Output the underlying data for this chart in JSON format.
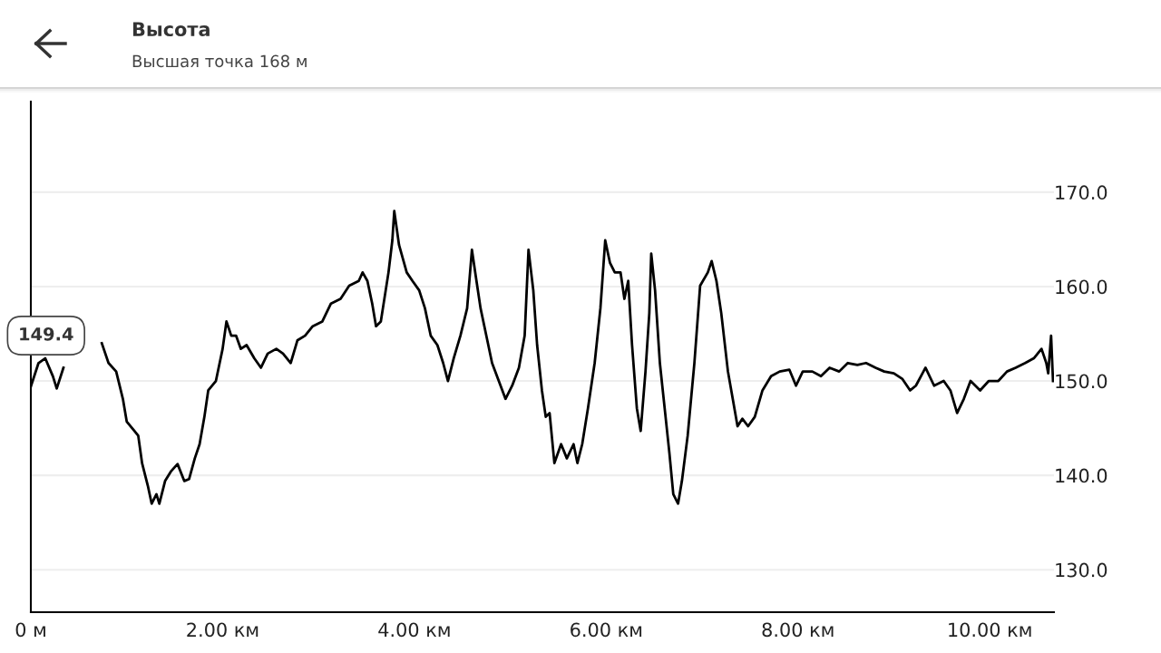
{
  "chart_data": {
    "type": "line",
    "title": "Высота",
    "subtitle": "Высшая точка 168 м",
    "x": [
      0,
      0.08,
      0.15,
      0.23,
      0.27,
      0.34,
      0.42,
      0.48,
      0.58,
      0.67,
      0.74,
      0.81,
      0.89,
      0.96,
      1.0,
      1.08,
      1.12,
      1.16,
      1.22,
      1.26,
      1.31,
      1.34,
      1.4,
      1.46,
      1.53,
      1.6,
      1.65,
      1.71,
      1.76,
      1.81,
      1.85,
      1.93,
      2.0,
      2.04,
      2.09,
      2.14,
      2.19,
      2.25,
      2.33,
      2.4,
      2.47,
      2.56,
      2.63,
      2.71,
      2.78,
      2.86,
      2.94,
      3.04,
      3.13,
      3.23,
      3.32,
      3.42,
      3.46,
      3.51,
      3.56,
      3.6,
      3.65,
      3.73,
      3.77,
      3.79,
      3.84,
      3.92,
      3.98,
      4.05,
      4.11,
      4.17,
      4.24,
      4.3,
      4.35,
      4.41,
      4.48,
      4.55,
      4.6,
      4.64,
      4.69,
      4.75,
      4.81,
      4.88,
      4.95,
      5.02,
      5.09,
      5.15,
      5.19,
      5.24,
      5.28,
      5.33,
      5.37,
      5.41,
      5.46,
      5.53,
      5.59,
      5.66,
      5.7,
      5.75,
      5.81,
      5.88,
      5.94,
      5.99,
      6.04,
      6.09,
      6.15,
      6.19,
      6.23,
      6.27,
      6.32,
      6.36,
      6.41,
      6.45,
      6.47,
      6.51,
      6.56,
      6.61,
      6.66,
      6.7,
      6.75,
      6.79,
      6.85,
      6.92,
      6.98,
      7.06,
      7.1,
      7.15,
      7.2,
      7.27,
      7.32,
      7.37,
      7.42,
      7.48,
      7.55,
      7.63,
      7.72,
      7.81,
      7.91,
      7.98,
      8.05,
      8.15,
      8.24,
      8.33,
      8.43,
      8.52,
      8.62,
      8.71,
      8.81,
      8.9,
      9.0,
      9.09,
      9.17,
      9.23,
      9.33,
      9.42,
      9.52,
      9.59,
      9.66,
      9.73,
      9.8,
      9.9,
      9.99,
      10.09,
      10.18,
      10.27,
      10.37,
      10.46,
      10.54,
      10.59,
      10.61,
      10.64,
      10.66
    ],
    "series": [
      {
        "color": "#000000",
        "values": [
          149.4,
          151.9,
          152.4,
          150.5,
          149.2,
          151.4,
          null,
          null,
          null,
          null,
          154.0,
          151.9,
          151.0,
          148.1,
          145.7,
          144.7,
          144.2,
          141.3,
          138.9,
          137.0,
          138.0,
          137.0,
          139.4,
          140.4,
          141.2,
          139.4,
          139.6,
          141.8,
          143.3,
          146.2,
          149.0,
          150.0,
          153.4,
          156.3,
          154.8,
          154.8,
          153.4,
          153.8,
          152.4,
          151.4,
          152.9,
          153.4,
          152.9,
          151.9,
          154.3,
          154.8,
          155.8,
          156.3,
          158.2,
          158.7,
          160.1,
          160.6,
          161.5,
          160.6,
          158.2,
          155.8,
          156.3,
          161.5,
          164.9,
          168.0,
          164.4,
          161.5,
          160.6,
          159.6,
          157.7,
          154.8,
          153.8,
          151.9,
          150.0,
          152.4,
          154.8,
          157.7,
          163.9,
          161.1,
          157.7,
          154.8,
          151.9,
          150.0,
          148.1,
          149.5,
          151.4,
          154.8,
          163.9,
          159.6,
          153.8,
          149.0,
          146.2,
          146.6,
          141.3,
          143.3,
          141.8,
          143.3,
          141.3,
          143.3,
          147.1,
          151.9,
          157.7,
          164.9,
          162.5,
          161.5,
          161.5,
          158.7,
          160.6,
          153.8,
          147.1,
          144.7,
          151.0,
          157.2,
          163.5,
          159.6,
          151.9,
          147.1,
          142.3,
          138.0,
          137.0,
          139.4,
          144.2,
          151.9,
          160.1,
          161.5,
          162.7,
          160.6,
          157.2,
          151.0,
          148.1,
          145.2,
          146.0,
          145.2,
          146.2,
          149.0,
          150.5,
          151.0,
          151.2,
          149.5,
          151.0,
          151.0,
          150.5,
          151.4,
          151.0,
          151.9,
          151.7,
          151.9,
          151.4,
          151.0,
          150.8,
          150.2,
          149.0,
          149.5,
          151.4,
          149.5,
          150.0,
          149.0,
          146.6,
          148.1,
          150.0,
          149.0,
          150.0,
          150.0,
          151.0,
          151.4,
          151.9,
          152.4,
          153.4,
          151.9,
          150.8,
          154.8,
          150.0
        ]
      }
    ],
    "xlim": [
      0,
      10.67
    ],
    "xticks": [
      {
        "value": 0,
        "label": "0 м"
      },
      {
        "value": 2,
        "label": "2.00 км"
      },
      {
        "value": 4,
        "label": "4.00 км"
      },
      {
        "value": 6,
        "label": "6.00 км"
      },
      {
        "value": 8,
        "label": "8.00 км"
      },
      {
        "value": 10,
        "label": "10.00 км"
      }
    ],
    "ylim": [
      125.5,
      179.6
    ],
    "yticks": [
      {
        "value": 130,
        "label": "130.0"
      },
      {
        "value": 140,
        "label": "140.0"
      },
      {
        "value": 150,
        "label": "150.0"
      },
      {
        "value": 160,
        "label": "160.0"
      },
      {
        "value": 170,
        "label": "170.0"
      }
    ],
    "grid": "y",
    "line_style": "solid",
    "marker": "none",
    "annotations": [
      "149.4"
    ]
  }
}
